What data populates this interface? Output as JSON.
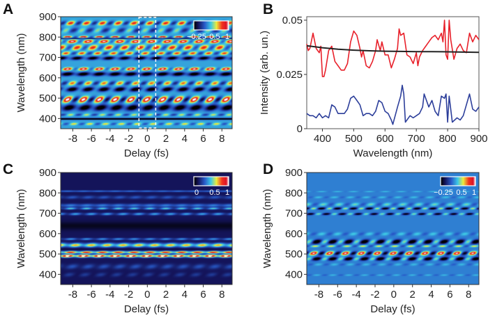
{
  "panels": {
    "A": {
      "letter": "A"
    },
    "B": {
      "letter": "B"
    },
    "C": {
      "letter": "C"
    },
    "D": {
      "letter": "D"
    }
  },
  "colors": {
    "red": "#e8202a",
    "blue": "#2c3e9a",
    "black": "#222222",
    "dashed_box": "#ffffff"
  },
  "chart_data": [
    {
      "id": "A",
      "type": "heatmap",
      "xlabel": "Delay (fs)",
      "ylabel": "Wavelength (nm)",
      "xlim": [
        -9.3,
        9.1
      ],
      "ylim": [
        350,
        900
      ],
      "xticks": [
        "-8",
        "-6",
        "-4",
        "-2",
        "0",
        "2",
        "4",
        "6",
        "8"
      ],
      "xtick_values": [
        -8,
        -6,
        -4,
        -2,
        0,
        2,
        4,
        6,
        8
      ],
      "yticks": [
        "400",
        "500",
        "600",
        "700",
        "800",
        "900"
      ],
      "ytick_values": [
        400,
        500,
        600,
        700,
        800,
        900
      ],
      "colorbar": {
        "labels": [
          "−0.25",
          "0.5",
          "1"
        ]
      },
      "highlight_region": {
        "delay_range": [
          -0.9,
          0.9
        ],
        "style": "dashed"
      },
      "period_fs": 1.7,
      "background": 0.42,
      "bands": [
        {
          "center": 870,
          "width": 10,
          "base": 0.1,
          "mod": 0.35,
          "phase": 0.2
        },
        {
          "center": 835,
          "width": 12,
          "base": -0.05,
          "mod": 0.2,
          "phase": 0.9
        },
        {
          "center": 802,
          "width": 5,
          "base": 0.2,
          "mod": 0.35,
          "phase": 0.0
        },
        {
          "center": 795,
          "width": 3,
          "base": -0.35,
          "mod": 0.0,
          "phase": 0
        },
        {
          "center": 780,
          "width": 8,
          "base": 0.25,
          "mod": 0.35,
          "phase": 0.3
        },
        {
          "center": 750,
          "width": 12,
          "base": 0.15,
          "mod": 0.3,
          "phase": 0.6
        },
        {
          "center": 722,
          "width": 8,
          "base": 0.1,
          "mod": 0.3,
          "phase": 0.9
        },
        {
          "center": 698,
          "width": 8,
          "base": -0.3,
          "mod": 0.2,
          "phase": 0.1
        },
        {
          "center": 645,
          "width": 7,
          "base": 0.25,
          "mod": 0.35,
          "phase": 0.0
        },
        {
          "center": 620,
          "width": 9,
          "base": -0.35,
          "mod": 0.2,
          "phase": 0.5
        },
        {
          "center": 575,
          "width": 10,
          "base": 0.05,
          "mod": 0.3,
          "phase": 0.3
        },
        {
          "center": 545,
          "width": 10,
          "base": -0.3,
          "mod": 0.25,
          "phase": 0.8
        },
        {
          "center": 495,
          "width": 14,
          "base": 0.15,
          "mod": 0.5,
          "phase": 0.0
        },
        {
          "center": 455,
          "width": 14,
          "base": -0.35,
          "mod": 0.2,
          "phase": 0.6
        },
        {
          "center": 420,
          "width": 6,
          "base": 0.0,
          "mod": 0.2,
          "phase": 0.2
        },
        {
          "center": 400,
          "width": 4,
          "base": -0.55,
          "mod": 0.0,
          "phase": 0
        },
        {
          "center": 375,
          "width": 6,
          "base": 0.05,
          "mod": 0.2,
          "phase": 0.4
        }
      ]
    },
    {
      "id": "B",
      "type": "line",
      "xlabel": "Wavelength (nm)",
      "ylabel": "Intensity (arb. un.)",
      "xlim": [
        350,
        900
      ],
      "ylim": [
        0,
        0.0516
      ],
      "xticks": [
        "400",
        "500",
        "600",
        "700",
        "800",
        "900"
      ],
      "xtick_values": [
        400,
        500,
        600,
        700,
        800,
        900
      ],
      "yticks": [
        "0",
        "0.025",
        "0.05"
      ],
      "ytick_values": [
        0,
        0.025,
        0.05
      ],
      "series": [
        {
          "name": "red",
          "color": "#e8202a",
          "x": [
            350,
            355,
            360,
            370,
            380,
            390,
            395,
            400,
            405,
            410,
            420,
            430,
            440,
            450,
            460,
            470,
            480,
            490,
            500,
            510,
            520,
            525,
            530,
            540,
            550,
            560,
            570,
            575,
            585,
            590,
            600,
            610,
            620,
            630,
            640,
            645,
            650,
            660,
            670,
            680,
            690,
            700,
            705,
            710,
            720,
            730,
            740,
            750,
            760,
            770,
            780,
            785,
            790,
            795,
            800,
            805,
            810,
            820,
            830,
            840,
            850,
            860,
            870,
            880,
            890,
            900
          ],
          "y": [
            0.039,
            0.036,
            0.037,
            0.044,
            0.037,
            0.035,
            0.038,
            0.024,
            0.024,
            0.027,
            0.036,
            0.038,
            0.031,
            0.029,
            0.027,
            0.027,
            0.03,
            0.04,
            0.045,
            0.043,
            0.037,
            0.033,
            0.036,
            0.029,
            0.028,
            0.031,
            0.036,
            0.041,
            0.036,
            0.04,
            0.034,
            0.034,
            0.028,
            0.032,
            0.037,
            0.046,
            0.043,
            0.044,
            0.034,
            0.033,
            0.03,
            0.035,
            0.029,
            0.033,
            0.036,
            0.038,
            0.04,
            0.042,
            0.043,
            0.041,
            0.044,
            0.04,
            0.05,
            0.034,
            0.032,
            0.05,
            0.041,
            0.032,
            0.037,
            0.039,
            0.036,
            0.035,
            0.044,
            0.04,
            0.043,
            0.041
          ]
        },
        {
          "name": "blue",
          "color": "#2c3e9a",
          "x": [
            350,
            360,
            370,
            380,
            390,
            400,
            410,
            420,
            430,
            440,
            450,
            460,
            470,
            480,
            490,
            500,
            510,
            520,
            530,
            540,
            550,
            560,
            570,
            580,
            590,
            600,
            610,
            620,
            625,
            640,
            650,
            655,
            660,
            665,
            680,
            690,
            700,
            710,
            720,
            725,
            740,
            750,
            760,
            770,
            780,
            790,
            795,
            800,
            805,
            815,
            830,
            840,
            850,
            860,
            870,
            880,
            890,
            900
          ],
          "y": [
            0.007,
            0.006,
            0.006,
            0.005,
            0.007,
            0.005,
            0.006,
            0.005,
            0.011,
            0.01,
            0.007,
            0.007,
            0.007,
            0.009,
            0.014,
            0.015,
            0.013,
            0.011,
            0.006,
            0.007,
            0.007,
            0.006,
            0.008,
            0.013,
            0.012,
            0.008,
            0.007,
            0.004,
            0.002,
            0.01,
            0.015,
            0.02,
            0.016,
            0.003,
            0.006,
            0.005,
            0.006,
            0.007,
            0.01,
            0.016,
            0.01,
            0.013,
            0.008,
            0.006,
            0.015,
            0.014,
            0.016,
            0.003,
            0.015,
            0.003,
            0.005,
            0.004,
            0.006,
            0.011,
            0.016,
            0.009,
            0.008,
            0.01
          ]
        },
        {
          "name": "black",
          "color": "#222222",
          "x": [
            350,
            400,
            450,
            500,
            550,
            600,
            650,
            700,
            750,
            800,
            850,
            900
          ],
          "y": [
            0.0382,
            0.0373,
            0.0366,
            0.0362,
            0.0359,
            0.0357,
            0.0356,
            0.0355,
            0.0355,
            0.0354,
            0.0353,
            0.0352
          ]
        }
      ]
    },
    {
      "id": "C",
      "type": "heatmap",
      "xlabel": "Delay (fs)",
      "ylabel": "Wavelength (nm)",
      "xlim": [
        -9.3,
        9.1
      ],
      "ylim": [
        350,
        900
      ],
      "xticks": [
        "-8",
        "-6",
        "-4",
        "-2",
        "0",
        "2",
        "4",
        "6",
        "8"
      ],
      "xtick_values": [
        -8,
        -6,
        -4,
        -2,
        0,
        2,
        4,
        6,
        8
      ],
      "yticks": [
        "400",
        "500",
        "600",
        "700",
        "800",
        "900"
      ],
      "ytick_values": [
        400,
        500,
        600,
        700,
        800,
        900
      ],
      "colorbar": {
        "labels": [
          "0",
          "0.5",
          "1"
        ]
      },
      "period_fs": 1.7,
      "background": 0.12,
      "bands": [
        {
          "center": 810,
          "width": 4,
          "base": 0.2,
          "mod": 0.03,
          "phase": 0
        },
        {
          "center": 780,
          "width": 8,
          "base": 0.12,
          "mod": 0.05,
          "phase": 0.3
        },
        {
          "center": 740,
          "width": 8,
          "base": 0.2,
          "mod": 0.05,
          "phase": 0.2
        },
        {
          "center": 725,
          "width": 5,
          "base": 0.25,
          "mod": 0.15,
          "phase": 0.2
        },
        {
          "center": 698,
          "width": 6,
          "base": 0.2,
          "mod": 0.12,
          "phase": 0.5
        },
        {
          "center": 640,
          "width": 20,
          "base": -0.08,
          "mod": 0.0,
          "phase": 0
        },
        {
          "center": 575,
          "width": 5,
          "base": 0.2,
          "mod": 0.1,
          "phase": 0.2
        },
        {
          "center": 545,
          "width": 10,
          "base": 0.45,
          "mod": 0.15,
          "phase": 0.5
        },
        {
          "center": 526,
          "width": 3,
          "base": -0.05,
          "mod": 0.0,
          "phase": 0
        },
        {
          "center": 510,
          "width": 6,
          "base": 0.6,
          "mod": 0.2,
          "phase": 0.2
        },
        {
          "center": 492,
          "width": 7,
          "base": 0.7,
          "mod": 0.25,
          "phase": 0.0
        },
        {
          "center": 440,
          "width": 12,
          "base": 0.1,
          "mod": 0.06,
          "phase": 0.3
        },
        {
          "center": 400,
          "width": 10,
          "base": 0.05,
          "mod": 0.05,
          "phase": 0.1
        }
      ]
    },
    {
      "id": "D",
      "type": "heatmap",
      "xlabel": "Delay (fs)",
      "ylabel": "Wavelength (nm)",
      "xlim": [
        -9.3,
        9.1
      ],
      "ylim": [
        350,
        900
      ],
      "xticks": [
        "-8",
        "-6",
        "-4",
        "-2",
        "0",
        "2",
        "4",
        "6",
        "8"
      ],
      "xtick_values": [
        -8,
        -6,
        -4,
        -2,
        0,
        2,
        4,
        6,
        8
      ],
      "yticks": [
        "400",
        "500",
        "600",
        "700",
        "800",
        "900"
      ],
      "ytick_values": [
        400,
        500,
        600,
        700,
        800,
        900
      ],
      "colorbar": {
        "labels": [
          "−0.25",
          "0.5",
          "1"
        ]
      },
      "period_fs": 1.7,
      "background": 0.36,
      "bands": [
        {
          "center": 808,
          "width": 3,
          "base": 0.05,
          "mod": 0.06,
          "phase": 0.5
        },
        {
          "center": 780,
          "width": 5,
          "base": 0.03,
          "mod": 0.08,
          "phase": 0.3
        },
        {
          "center": 745,
          "width": 8,
          "base": 0.05,
          "mod": 0.13,
          "phase": 0.6
        },
        {
          "center": 725,
          "width": 5,
          "base": -0.1,
          "mod": 0.35,
          "phase": 0.0
        },
        {
          "center": 698,
          "width": 5,
          "base": -0.1,
          "mod": 0.3,
          "phase": 0.3
        },
        {
          "center": 600,
          "width": 8,
          "base": 0.03,
          "mod": 0.1,
          "phase": 0.5
        },
        {
          "center": 562,
          "width": 10,
          "base": -0.15,
          "mod": 0.35,
          "phase": 0.7
        },
        {
          "center": 540,
          "width": 5,
          "base": 0.1,
          "mod": 0.2,
          "phase": 0.1
        },
        {
          "center": 505,
          "width": 9,
          "base": 0.15,
          "mod": 0.5,
          "phase": 0.0
        },
        {
          "center": 478,
          "width": 8,
          "base": -0.15,
          "mod": 0.35,
          "phase": 0.7
        },
        {
          "center": 450,
          "width": 6,
          "base": 0.02,
          "mod": 0.08,
          "phase": 0.3
        },
        {
          "center": 398,
          "width": 4,
          "base": 0.02,
          "mod": 0.08,
          "phase": 0.2
        }
      ]
    }
  ]
}
